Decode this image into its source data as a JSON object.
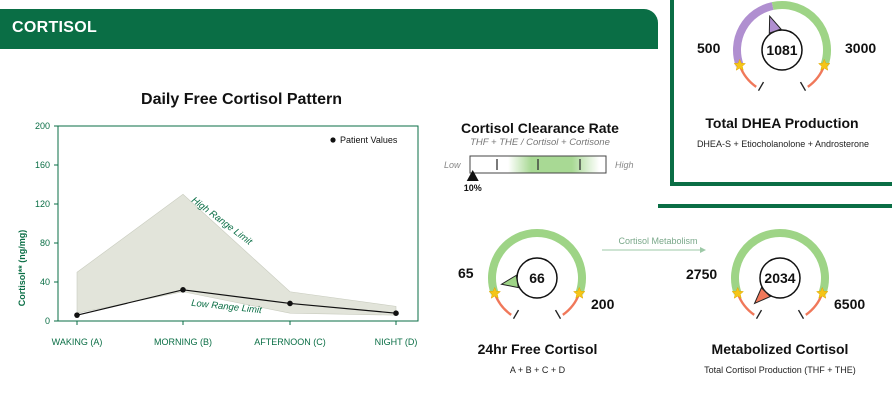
{
  "header": {
    "title": "CORTISOL"
  },
  "chart_data": {
    "type": "line",
    "title": "Daily Free Cortisol Pattern",
    "ylabel": "Cortisol** (ng/mg)",
    "ylim": [
      0,
      200
    ],
    "yticks": [
      0,
      40,
      80,
      120,
      160,
      200
    ],
    "categories": [
      "WAKING (A)",
      "MORNING (B)",
      "AFTERNOON (C)",
      "NIGHT (D)"
    ],
    "legend": "Patient Values",
    "legend_position": "top-right",
    "series": [
      {
        "name": "Patient Values",
        "values": [
          6,
          32,
          18,
          8
        ]
      }
    ],
    "range": {
      "high_label": "High Range Limit",
      "low_label": "Low Range Limit",
      "high": [
        50,
        130,
        30,
        15
      ],
      "low": [
        8,
        30,
        8,
        6
      ]
    }
  },
  "clearance": {
    "title": "Cortisol Clearance Rate",
    "subtitle": "THF + THE / Cortisol + Cortisone",
    "low_label": "Low",
    "high_label": "High",
    "value_label": "10%",
    "value_fraction": 0.02
  },
  "free_cortisol": {
    "value": "66",
    "low": "65",
    "high": "200",
    "title": "24hr Free Cortisol",
    "subtitle": "A + B + C + D"
  },
  "metabolism_arrow": {
    "label": "Cortisol Metabolism"
  },
  "metabolized": {
    "value": "2034",
    "low": "2750",
    "high": "6500",
    "title": "Metabolized Cortisol",
    "subtitle": "Total Cortisol Production (THF + THE)"
  },
  "dhea": {
    "value": "1081",
    "low": "500",
    "high": "3000",
    "title": "Total DHEA Production",
    "subtitle": "DHEA-S + Etiocholanolone + Androsterone"
  },
  "colors": {
    "brand_green": "#0a6e45",
    "range_green": "#9ed486",
    "low_red": "#f0785a",
    "purple": "#b08fd0",
    "star": "#f5c518",
    "band": "#e2e4da"
  }
}
